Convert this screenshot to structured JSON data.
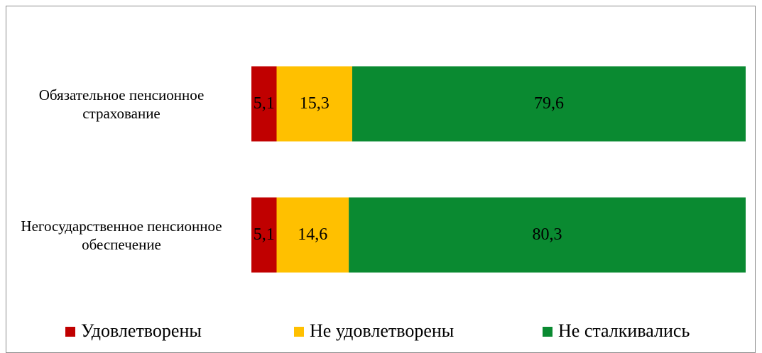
{
  "chart_data": {
    "type": "bar",
    "horizontal": true,
    "stacked": true,
    "categories": [
      "Обязательное пенсионное страхование",
      "Негосударственное пенсионное обеспечение"
    ],
    "xlim": [
      0,
      100
    ],
    "series": [
      {
        "name": "Удовлетворены",
        "color": "#c00000",
        "values": [
          5.1,
          5.1
        ],
        "value_labels": [
          "5,1",
          "5,1"
        ]
      },
      {
        "name": "Не удовлетворены",
        "color": "#ffc000",
        "values": [
          15.3,
          14.6
        ],
        "value_labels": [
          "15,3",
          "14,6"
        ]
      },
      {
        "name": "Не сталкивались",
        "color": "#0a8a31",
        "values": [
          79.6,
          80.3
        ],
        "value_labels": [
          "79,6",
          "80,3"
        ]
      }
    ],
    "legend": "bottom"
  }
}
